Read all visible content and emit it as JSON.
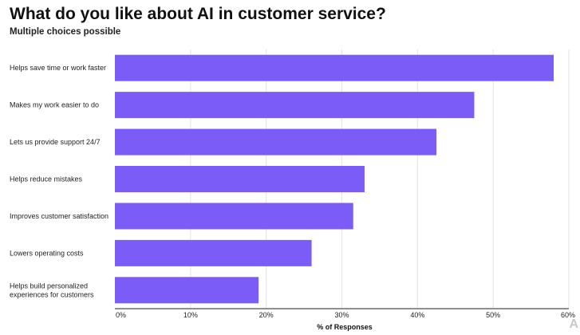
{
  "chart_data": {
    "type": "bar",
    "orientation": "horizontal",
    "title": "What do you like about AI in customer service?",
    "subtitle": "Multiple choices possible",
    "xlabel": "% of Responses",
    "ylabel": "",
    "xlim": [
      0,
      60
    ],
    "ticks": [
      0,
      10,
      20,
      30,
      40,
      50,
      60
    ],
    "tick_labels": [
      "0%",
      "10%",
      "20%",
      "30%",
      "40%",
      "50%",
      "60%"
    ],
    "grid": true,
    "bar_color": "#7b5cf7",
    "categories": [
      "Helps save time or work faster",
      "Makes my work easier to do",
      "Lets us provide support 24/7",
      "Helps reduce mistakes",
      "Improves customer satisfaction",
      "Lowers operating costs",
      "Helps build personalized experiences for customers"
    ],
    "category_lines": [
      [
        "Helps save time or work faster"
      ],
      [
        "Makes my work easier to do"
      ],
      [
        "Lets us provide support 24/7"
      ],
      [
        "Helps reduce mistakes"
      ],
      [
        "Improves customer satisfaction"
      ],
      [
        "Lowers operating costs"
      ],
      [
        "Helps build personalized",
        "experiences for customers"
      ]
    ],
    "values": [
      58,
      47.5,
      42.5,
      33,
      31.5,
      26,
      19
    ]
  }
}
